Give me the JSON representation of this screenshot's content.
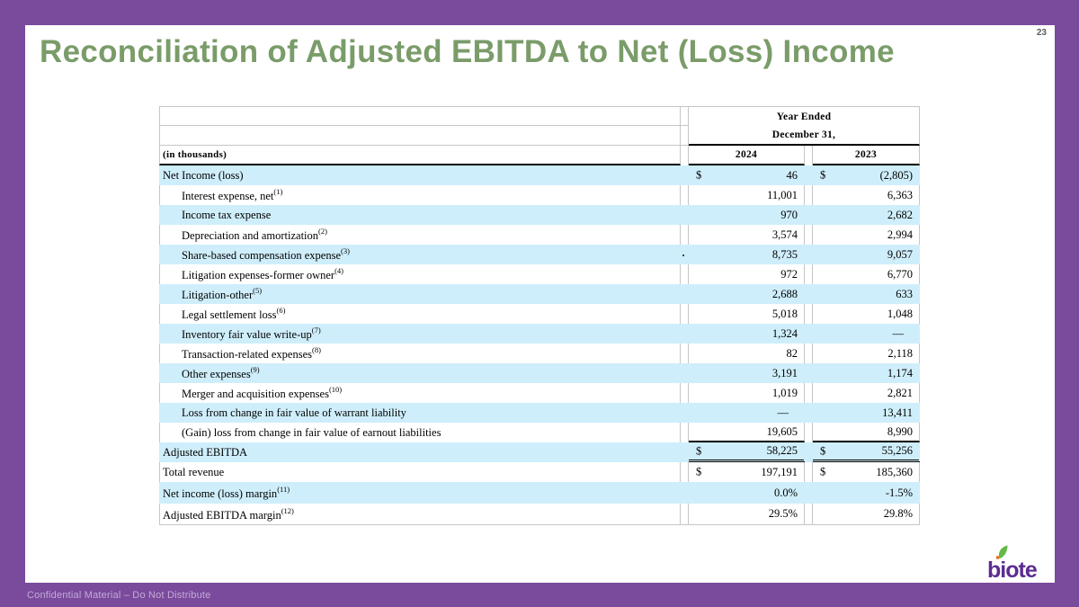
{
  "slide": {
    "page_number": "23",
    "title": "Reconciliation of Adjusted EBITDA to Net (Loss) Income",
    "footer": "Confidential Material – Do Not Distribute",
    "logo_text": "biote"
  },
  "colors": {
    "frame_purple": "#7a4a9c",
    "title_green": "#7a9c69",
    "row_highlight_blue": "#cfeefb",
    "grid_line": "#c6c6c6",
    "logo_purple": "#5c2d91",
    "logo_leaf_green": "#63b945",
    "logo_dot_orange": "#e8751a",
    "footer_text": "#c3abd6"
  },
  "table": {
    "header": {
      "year_ended": "Year Ended",
      "december": "December 31,",
      "in_thousands": "(in thousands)",
      "col_2024": "2024",
      "col_2023": "2023"
    },
    "rows": [
      {
        "label": "Net Income (loss)",
        "sup": "",
        "indent": false,
        "hl": true,
        "d24": "$",
        "v24": "46",
        "d23": "$",
        "v23": "(2,805)"
      },
      {
        "label": "Interest expense, net",
        "sup": "(1)",
        "indent": true,
        "hl": false,
        "v24": "11,001",
        "v23": "6,363"
      },
      {
        "label": "Income tax expense",
        "sup": "",
        "indent": true,
        "hl": true,
        "v24": "970",
        "v23": "2,682"
      },
      {
        "label": "Depreciation and amortization",
        "sup": "(2)",
        "indent": true,
        "hl": false,
        "v24": "3,574",
        "v23": "2,994"
      },
      {
        "label": "Share-based compensation expense",
        "sup": "(3)",
        "indent": true,
        "hl": true,
        "mark": true,
        "v24": "8,735",
        "v23": "9,057"
      },
      {
        "label": "Litigation expenses-former owner",
        "sup": "(4)",
        "indent": true,
        "hl": false,
        "v24": "972",
        "v23": "6,770"
      },
      {
        "label": "Litigation-other",
        "sup": "(5)",
        "indent": true,
        "hl": true,
        "v24": "2,688",
        "v23": "633"
      },
      {
        "label": "Legal settlement loss",
        "sup": "(6)",
        "indent": true,
        "hl": false,
        "v24": "5,018",
        "v23": "1,048"
      },
      {
        "label": "Inventory fair value write-up",
        "sup": "(7)",
        "indent": true,
        "hl": true,
        "v24": "1,324",
        "v23": "—"
      },
      {
        "label": "Transaction-related expenses",
        "sup": "(8)",
        "indent": true,
        "hl": false,
        "v24": "82",
        "v23": "2,118"
      },
      {
        "label": "Other expenses",
        "sup": "(9)",
        "indent": true,
        "hl": true,
        "v24": "3,191",
        "v23": "1,174"
      },
      {
        "label": "Merger and acquisition expenses",
        "sup": "(10)",
        "indent": true,
        "hl": false,
        "v24": "1,019",
        "v23": "2,821"
      },
      {
        "label": "Loss from change in fair value of warrant liability",
        "sup": "",
        "indent": true,
        "hl": true,
        "v24": "—",
        "v23": "13,411"
      },
      {
        "label": "(Gain) loss from change in fair value of earnout liabilities",
        "sup": "",
        "indent": true,
        "hl": false,
        "line": "single",
        "v24": "19,605",
        "v23": "8,990"
      },
      {
        "label": "Adjusted EBITDA",
        "sup": "",
        "indent": false,
        "hl": true,
        "line": "double",
        "d24": "$",
        "v24": "58,225",
        "d23": "$",
        "v23": "55,256"
      },
      {
        "label": "Total revenue",
        "sup": "",
        "indent": false,
        "hl": false,
        "d24": "$",
        "v24": "197,191",
        "d23": "$",
        "v23": "185,360"
      },
      {
        "label": "Net income (loss) margin",
        "sup": "(11)",
        "indent": false,
        "hl": true,
        "tall": true,
        "v24": "0.0%",
        "v23": "-1.5%"
      },
      {
        "label": "Adjusted EBITDA margin",
        "sup": "(12)",
        "indent": false,
        "hl": false,
        "tall": true,
        "v24": "29.5%",
        "v23": "29.8%"
      }
    ]
  }
}
